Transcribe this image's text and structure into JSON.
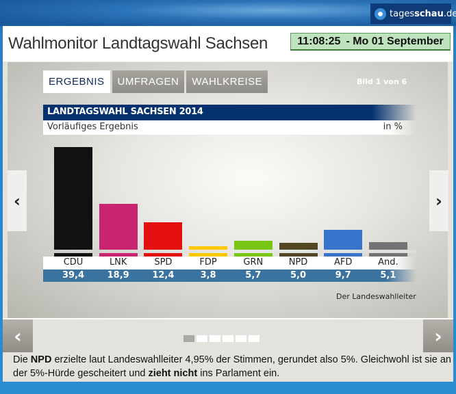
{
  "brand": {
    "logo_text_regular": "tages",
    "logo_text_bold": "schau",
    "logo_suffix": ".de"
  },
  "header": {
    "title": "Wahlmonitor Landtagswahl Sachsen",
    "clock_time": "11:08:25",
    "clock_date": "- Mo  01 September"
  },
  "slide": {
    "tabs": [
      {
        "label": "ERGEBNIS",
        "active": true
      },
      {
        "label": "UMFRAGEN",
        "active": false
      },
      {
        "label": "WAHLKREISE",
        "active": false
      }
    ],
    "counter": "Bild 1 von 6",
    "current_slide": 1,
    "total_slides": 6,
    "source": "Der Landeswahlleiter"
  },
  "chart_data": {
    "type": "bar",
    "title": "LANDTAGSWAHL SACHSEN 2014",
    "subtitle": "Vorläufiges Ergebnis",
    "unit": "in %",
    "categories": [
      "CDU",
      "LNK",
      "SPD",
      "FDP",
      "GRN",
      "NPD",
      "AFD",
      "And."
    ],
    "values": [
      39.4,
      18.9,
      12.4,
      3.8,
      5.7,
      5.0,
      9.7,
      5.1
    ],
    "value_labels": [
      "39,4",
      "18,9",
      "12,4",
      "3,8",
      "5,7",
      "5,0",
      "9,7",
      "5,1"
    ],
    "colors": [
      "#111111",
      "#c9246f",
      "#e41010",
      "#ffc800",
      "#78c514",
      "#524623",
      "#3874cc",
      "#737275"
    ]
  },
  "caption": {
    "p1": "Die ",
    "b1": "NPD",
    "p2": " erzielte laut Landeswahlleiter 4,95% der Stimmen, gerundet also 5%. Gleichwohl ist sie an der 5%-Hürde gescheitert und ",
    "b2": "zieht nicht",
    "p3": " ins Parlament ein."
  },
  "icons": {
    "prev": "chevron-left-icon",
    "next": "chevron-right-icon"
  }
}
